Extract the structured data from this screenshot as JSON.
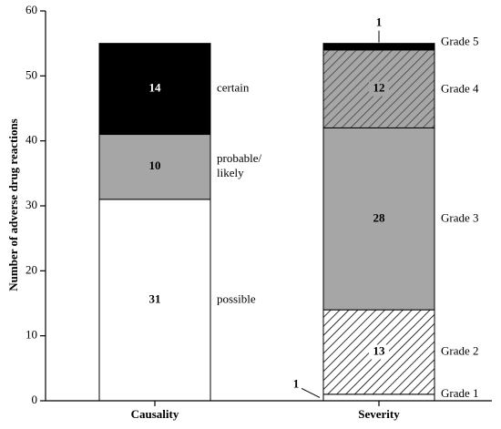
{
  "chart_data": {
    "type": "bar",
    "stacked": true,
    "ylabel": "Number of adverse drug reactions",
    "xlabel": "",
    "ylim": [
      0,
      60
    ],
    "yticks": [
      0,
      10,
      20,
      30,
      40,
      50,
      60
    ],
    "grid": false,
    "categories": [
      "Causality",
      "Severity"
    ],
    "bars": [
      {
        "category": "Causality",
        "segments": [
          {
            "label": "possible",
            "value": 31,
            "value_label": "31",
            "fill": "#ffffff",
            "pattern": "none"
          },
          {
            "label": "probable/ likely",
            "label_lines": [
              "probable/",
              "likely"
            ],
            "value": 10,
            "value_label": "10",
            "fill": "#a6a6a6",
            "pattern": "none"
          },
          {
            "label": "certain",
            "value": 14,
            "value_label": "14",
            "fill": "#000000",
            "pattern": "none",
            "text_color": "#ffffff"
          }
        ]
      },
      {
        "category": "Severity",
        "segments": [
          {
            "label": "Grade 1",
            "value": 1,
            "value_label": "1",
            "fill": "#ffffff",
            "pattern": "none",
            "callout": "bottom-left"
          },
          {
            "label": "Grade 2",
            "value": 13,
            "value_label": "13",
            "fill": "#ffffff",
            "pattern": "hatch-light"
          },
          {
            "label": "Grade 3",
            "value": 28,
            "value_label": "28",
            "fill": "#a6a6a6",
            "pattern": "none"
          },
          {
            "label": "Grade 4",
            "value": 12,
            "value_label": "12",
            "fill": "#a6a6a6",
            "pattern": "hatch-dark"
          },
          {
            "label": "Grade 5",
            "value": 1,
            "value_label": "1",
            "fill": "#000000",
            "pattern": "none",
            "callout": "top"
          }
        ]
      }
    ]
  }
}
